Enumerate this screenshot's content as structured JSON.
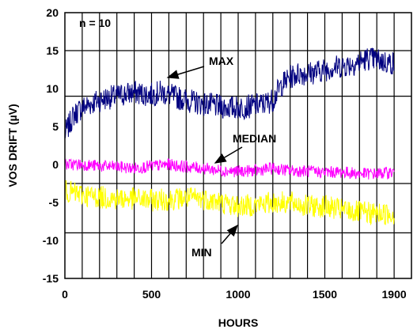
{
  "chart_data": {
    "type": "line",
    "title": "",
    "xlabel": "HOURS",
    "ylabel": "VOS DRIFT (µV)",
    "xlim": [
      0,
      1900
    ],
    "ylim": [
      -15,
      20
    ],
    "x_ticks": [
      0,
      500,
      1000,
      1500,
      1900
    ],
    "x_tick_labels": [
      "0",
      "500",
      "1000",
      "1500",
      "1900"
    ],
    "y_ticks": [
      -15,
      -10,
      -5,
      0,
      5,
      10,
      15,
      20
    ],
    "y_tick_labels": [
      "-15",
      "-10",
      "-5",
      "0",
      "5",
      "10",
      "15",
      "20"
    ],
    "grid": true,
    "annotation_n": "n = 10",
    "series": [
      {
        "name": "MAX",
        "color": "#000080",
        "x": [
          0,
          50,
          100,
          150,
          200,
          250,
          300,
          350,
          400,
          450,
          500,
          550,
          600,
          650,
          700,
          750,
          800,
          850,
          900,
          950,
          1000,
          1050,
          1100,
          1150,
          1200,
          1250,
          1300,
          1350,
          1400,
          1450,
          1500,
          1550,
          1600,
          1650,
          1700,
          1750,
          1800,
          1850,
          1900
        ],
        "y": [
          4,
          6.5,
          7.5,
          8,
          8.5,
          8.8,
          9,
          9.3,
          9.5,
          9.3,
          9.2,
          9.5,
          9.2,
          8.8,
          8.5,
          8.2,
          8,
          7.8,
          7.6,
          7.5,
          7.5,
          7.6,
          7.8,
          8,
          8.5,
          10.5,
          11.5,
          12,
          12,
          12.2,
          12.5,
          12.8,
          13,
          13.2,
          13.5,
          14,
          13.8,
          13.5,
          13.3
        ]
      },
      {
        "name": "MEDIAN",
        "color": "#ff00ff",
        "x": [
          0,
          100,
          200,
          300,
          400,
          500,
          600,
          700,
          800,
          900,
          1000,
          1100,
          1200,
          1300,
          1400,
          1500,
          1600,
          1700,
          1800,
          1900
        ],
        "y": [
          0,
          0,
          -0.2,
          -0.3,
          -0.5,
          -0.2,
          0,
          -0.3,
          -0.5,
          -0.8,
          -0.9,
          -0.8,
          -0.5,
          -0.8,
          -0.9,
          -1,
          -1,
          -1.2,
          -1.2,
          -1
        ]
      },
      {
        "name": "MIN",
        "color": "#ffff00",
        "x": [
          0,
          100,
          200,
          300,
          400,
          500,
          600,
          700,
          800,
          900,
          1000,
          1100,
          1200,
          1300,
          1400,
          1500,
          1600,
          1700,
          1800,
          1900
        ],
        "y": [
          -3.5,
          -4,
          -4.3,
          -4.5,
          -4.5,
          -4.7,
          -4.6,
          -4.4,
          -4.5,
          -5,
          -5.5,
          -5.3,
          -5,
          -5,
          -5.5,
          -5.5,
          -6,
          -6.3,
          -6.5,
          -6.5
        ]
      }
    ],
    "labels": [
      {
        "text": "MAX",
        "series": "MAX"
      },
      {
        "text": "MEDIAN",
        "series": "MEDIAN"
      },
      {
        "text": "MIN",
        "series": "MIN"
      }
    ]
  }
}
